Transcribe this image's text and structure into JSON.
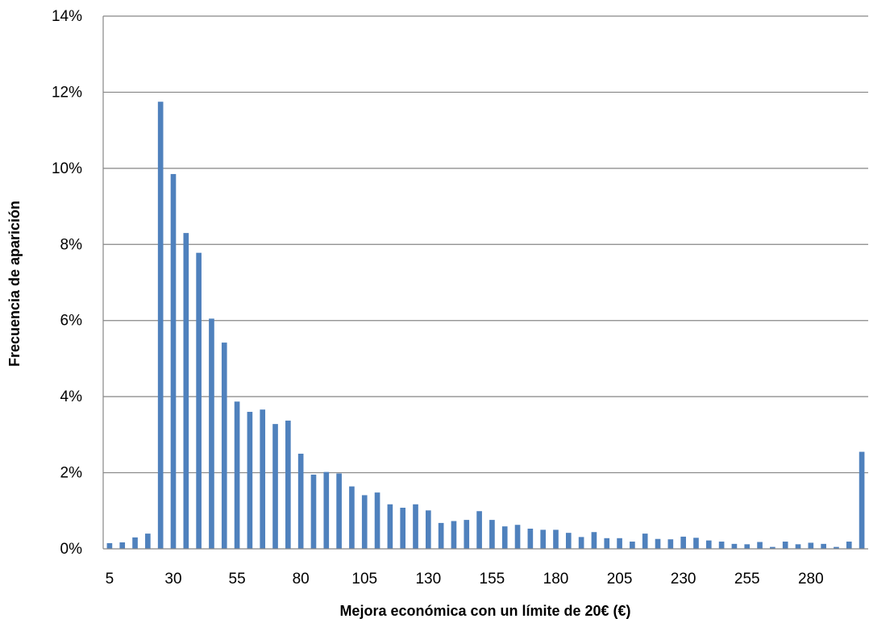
{
  "chart_data": {
    "type": "bar",
    "title": "",
    "xlabel": "Mejora económica con un límite de 20€ (€)",
    "ylabel": "Frecuencia de aparición",
    "ylim": [
      0,
      14
    ],
    "y_ticks": [
      "0%",
      "2%",
      "4%",
      "6%",
      "8%",
      "10%",
      "12%",
      "14%"
    ],
    "x_ticks": [
      "5",
      "30",
      "55",
      "80",
      "105",
      "130",
      "155",
      "180",
      "205",
      "230",
      "255",
      "280"
    ],
    "grid": "horizontal",
    "bar_color": "#4F81BD",
    "categories": [
      5,
      10,
      15,
      20,
      25,
      30,
      35,
      40,
      45,
      50,
      55,
      60,
      65,
      70,
      75,
      80,
      85,
      90,
      95,
      100,
      105,
      110,
      115,
      120,
      125,
      130,
      135,
      140,
      145,
      150,
      155,
      160,
      165,
      170,
      175,
      180,
      185,
      190,
      195,
      200,
      205,
      210,
      215,
      220,
      225,
      230,
      235,
      240,
      245,
      250,
      255,
      260,
      265,
      270,
      275,
      280,
      285,
      290,
      295,
      300
    ],
    "values": [
      0.15,
      0.17,
      0.3,
      0.4,
      11.75,
      9.85,
      8.3,
      7.78,
      6.05,
      5.42,
      3.87,
      3.6,
      3.66,
      3.28,
      3.37,
      2.5,
      1.95,
      2.02,
      1.98,
      1.64,
      1.41,
      1.48,
      1.17,
      1.08,
      1.17,
      1.01,
      0.68,
      0.73,
      0.76,
      0.99,
      0.76,
      0.59,
      0.63,
      0.53,
      0.5,
      0.5,
      0.42,
      0.31,
      0.44,
      0.28,
      0.28,
      0.19,
      0.4,
      0.26,
      0.25,
      0.32,
      0.29,
      0.22,
      0.19,
      0.13,
      0.12,
      0.18,
      0.05,
      0.19,
      0.12,
      0.16,
      0.13,
      0.05,
      0.19,
      2.55
    ],
    "unit": "%"
  }
}
